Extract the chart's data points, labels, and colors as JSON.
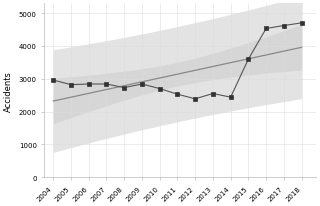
{
  "years": [
    2004,
    2005,
    2006,
    2007,
    2008,
    2009,
    2010,
    2011,
    2012,
    2013,
    2014,
    2015,
    2016,
    2017,
    2018
  ],
  "accidents": [
    2960,
    2820,
    2840,
    2840,
    2730,
    2840,
    2700,
    2530,
    2390,
    2550,
    2440,
    3600,
    4530,
    4620,
    4700
  ],
  "line_color": "#555555",
  "marker_color": "#333333",
  "trend_line_color": "#888888",
  "ci_color": "#cccccc",
  "bg_color": "#ffffff",
  "grid_color": "#dddddd",
  "ylabel": "Accidents",
  "ylim": [
    0,
    5300
  ],
  "yticks": [
    0,
    1000,
    2000,
    3000,
    4000,
    5000
  ],
  "xlim": [
    2003.5,
    2018.8
  ],
  "axis_fontsize": 6.0,
  "tick_fontsize": 5.0
}
